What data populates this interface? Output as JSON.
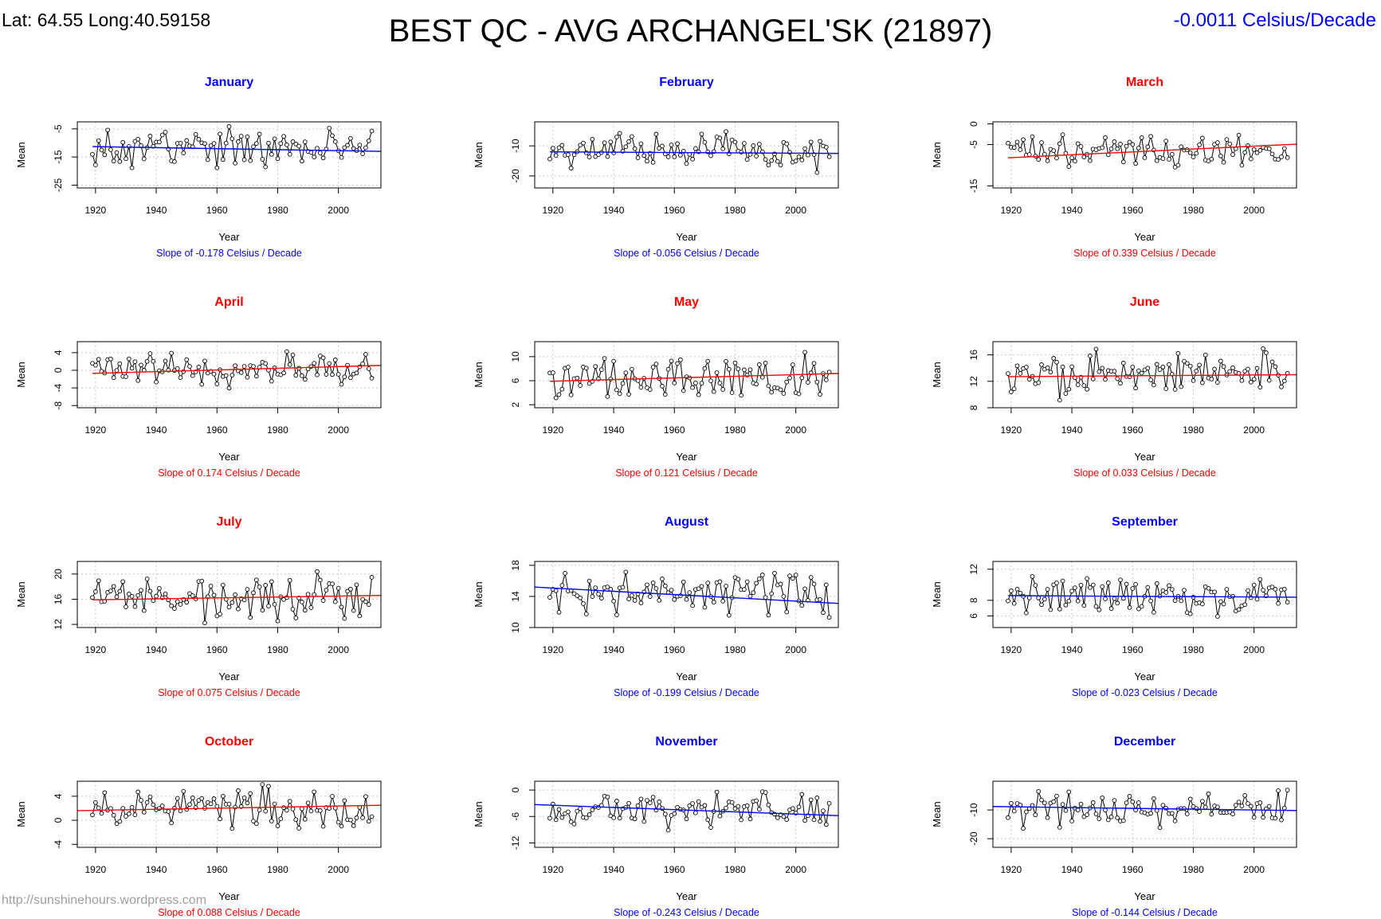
{
  "header": {
    "latlong": "Lat: 64.55   Long:40.59158",
    "title": "BEST QC - AVG ARCHANGEL'SK (21897)",
    "overall_slope": "-0.0011 Celsius/Decade",
    "overall_slope_color": "#0000ff"
  },
  "watermark": "http://sunshinehours.wordpress.com",
  "colors": {
    "warming": "#ff0000",
    "cooling": "#0000ff"
  },
  "chart_data": [
    {
      "type": "line",
      "title": "January",
      "xlabel": "Year",
      "ylabel": "Mean",
      "slope_text": "Slope of -0.178  Celsius / Decade",
      "trend": "cooling",
      "x_ticks": [
        "1920",
        "1940",
        "1960",
        "1980",
        "2000"
      ],
      "xlim": [
        1914,
        2014
      ],
      "y_ticks": [
        "-5",
        "-15",
        "-25"
      ],
      "y_tick_values": [
        -5,
        -15,
        -25
      ],
      "ylim": [
        -26,
        -2.5
      ],
      "trend_line": [
        [
          1919,
          -11.3
        ],
        [
          2014,
          -13.0
        ]
      ],
      "seed": 1,
      "mean": -12,
      "amp": 5.5,
      "lo": -24.5,
      "hi": -3.5
    },
    {
      "type": "line",
      "title": "February",
      "xlabel": "Year",
      "ylabel": "Mean",
      "slope_text": "Slope of -0.056  Celsius / Decade",
      "trend": "cooling",
      "x_ticks": [
        "1920",
        "1940",
        "1960",
        "1980",
        "2000"
      ],
      "xlim": [
        1914,
        2014
      ],
      "y_ticks": [
        "-10",
        "-20"
      ],
      "y_tick_values": [
        -10,
        -20
      ],
      "ylim": [
        -24,
        -2
      ],
      "trend_line": [
        [
          1919,
          -12.0
        ],
        [
          2014,
          -12.5
        ]
      ],
      "seed": 2,
      "mean": -12,
      "amp": 4.5,
      "lo": -23.5,
      "hi": -2.5
    },
    {
      "type": "line",
      "title": "March",
      "xlabel": "Year",
      "ylabel": "Mean",
      "slope_text": "Slope of 0.339  Celsius / Decade",
      "trend": "warming",
      "x_ticks": [
        "1920",
        "1940",
        "1960",
        "1980",
        "2000"
      ],
      "xlim": [
        1914,
        2014
      ],
      "y_ticks": [
        "0",
        "-5",
        "-15"
      ],
      "y_tick_values": [
        0,
        -5,
        -15
      ],
      "ylim": [
        -15.5,
        0.5
      ],
      "trend_line": [
        [
          1919,
          -8.2
        ],
        [
          2014,
          -4.9
        ]
      ],
      "seed": 3,
      "mean": -6.5,
      "amp": 3,
      "lo": -15,
      "hi": 0
    },
    {
      "type": "line",
      "title": "April",
      "xlabel": "Year",
      "ylabel": "Mean",
      "slope_text": "Slope of 0.174  Celsius / Decade",
      "trend": "warming",
      "x_ticks": [
        "1920",
        "1940",
        "1960",
        "1980",
        "2000"
      ],
      "xlim": [
        1914,
        2014
      ],
      "y_ticks": [
        "4",
        "0",
        "-4",
        "-8"
      ],
      "y_tick_values": [
        4,
        0,
        -4,
        -8
      ],
      "ylim": [
        -8.5,
        6.5
      ],
      "trend_line": [
        [
          1919,
          -0.7
        ],
        [
          2014,
          1.1
        ]
      ],
      "seed": 4,
      "mean": 0.3,
      "amp": 2.8,
      "lo": -8,
      "hi": 5.8
    },
    {
      "type": "line",
      "title": "May",
      "xlabel": "Year",
      "ylabel": "Mean",
      "slope_text": "Slope of 0.121  Celsius / Decade",
      "trend": "warming",
      "x_ticks": [
        "1920",
        "1940",
        "1960",
        "1980",
        "2000"
      ],
      "xlim": [
        1914,
        2014
      ],
      "y_ticks": [
        "10",
        "6",
        "2"
      ],
      "y_tick_values": [
        10,
        6,
        2
      ],
      "ylim": [
        1.5,
        12.5
      ],
      "trend_line": [
        [
          1919,
          5.9
        ],
        [
          2014,
          7.2
        ]
      ],
      "seed": 5,
      "mean": 6.5,
      "amp": 2.6,
      "lo": 1.8,
      "hi": 12
    },
    {
      "type": "line",
      "title": "June",
      "xlabel": "Year",
      "ylabel": "Mean",
      "slope_text": "Slope of 0.033  Celsius / Decade",
      "trend": "warming",
      "x_ticks": [
        "1920",
        "1940",
        "1960",
        "1980",
        "2000"
      ],
      "xlim": [
        1914,
        2014
      ],
      "y_ticks": [
        "16",
        "12",
        "8"
      ],
      "y_tick_values": [
        16,
        12,
        8
      ],
      "ylim": [
        8,
        18
      ],
      "trend_line": [
        [
          1919,
          12.7
        ],
        [
          2014,
          13.0
        ]
      ],
      "seed": 6,
      "mean": 12.8,
      "amp": 2.5,
      "lo": 8.3,
      "hi": 17.7
    },
    {
      "type": "line",
      "title": "July",
      "xlabel": "Year",
      "ylabel": "Mean",
      "slope_text": "Slope of 0.075  Celsius / Decade",
      "trend": "warming",
      "x_ticks": [
        "1920",
        "1940",
        "1960",
        "1980",
        "2000"
      ],
      "xlim": [
        1914,
        2014
      ],
      "y_ticks": [
        "20",
        "16",
        "12"
      ],
      "y_tick_values": [
        20,
        16,
        12
      ],
      "ylim": [
        11.5,
        22
      ],
      "trend_line": [
        [
          1919,
          15.9
        ],
        [
          2014,
          16.6
        ]
      ],
      "seed": 7,
      "mean": 16.3,
      "amp": 2.5,
      "lo": 11.8,
      "hi": 21.5
    },
    {
      "type": "line",
      "title": "August",
      "xlabel": "Year",
      "ylabel": "Mean",
      "slope_text": "Slope of -0.199  Celsius / Decade",
      "trend": "cooling",
      "x_ticks": [
        "1920",
        "1940",
        "1960",
        "1980",
        "2000"
      ],
      "xlim": [
        1914,
        2014
      ],
      "y_ticks": [
        "18",
        "14",
        "10"
      ],
      "y_tick_values": [
        18,
        14,
        10
      ],
      "ylim": [
        10,
        18.5
      ],
      "trend_line": [
        [
          1914,
          15.2
        ],
        [
          2014,
          13.1
        ]
      ],
      "seed": 8,
      "mean": 14.2,
      "amp": 1.9,
      "lo": 10.3,
      "hi": 18
    },
    {
      "type": "line",
      "title": "September",
      "xlabel": "Year",
      "ylabel": "Mean",
      "slope_text": "Slope of -0.023  Celsius / Decade",
      "trend": "cooling",
      "x_ticks": [
        "1920",
        "1940",
        "1960",
        "1980",
        "2000"
      ],
      "xlim": [
        1914,
        2014
      ],
      "y_ticks": [
        "12",
        "8",
        "6"
      ],
      "y_tick_values": [
        12,
        8,
        6
      ],
      "ylim": [
        4.5,
        13
      ],
      "trend_line": [
        [
          1919,
          8.6
        ],
        [
          2014,
          8.4
        ]
      ],
      "seed": 9,
      "mean": 8.5,
      "amp": 1.8,
      "lo": 5,
      "hi": 12.3
    },
    {
      "type": "line",
      "title": "October",
      "xlabel": "Year",
      "ylabel": "Mean",
      "slope_text": "Slope of 0.088  Celsius / Decade",
      "trend": "warming",
      "x_ticks": [
        "1920",
        "1940",
        "1960",
        "1980",
        "2000"
      ],
      "xlim": [
        1914,
        2014
      ],
      "y_ticks": [
        "4",
        "0",
        "-4"
      ],
      "y_tick_values": [
        4,
        0,
        -4
      ],
      "ylim": [
        -4.5,
        6.5
      ],
      "trend_line": [
        [
          1914,
          1.6
        ],
        [
          2014,
          2.5
        ]
      ],
      "seed": 10,
      "mean": 2,
      "amp": 2.3,
      "lo": -4,
      "hi": 6.2
    },
    {
      "type": "line",
      "title": "November",
      "xlabel": "Year",
      "ylabel": "Mean",
      "slope_text": "Slope of -0.243  Celsius / Decade",
      "trend": "cooling",
      "x_ticks": [
        "1920",
        "1940",
        "1960",
        "1980",
        "2000"
      ],
      "xlim": [
        1914,
        2014
      ],
      "y_ticks": [
        "0",
        "-6",
        "-12"
      ],
      "y_tick_values": [
        0,
        -6,
        -12
      ],
      "ylim": [
        -13,
        2
      ],
      "trend_line": [
        [
          1914,
          -3.3
        ],
        [
          2014,
          -5.8
        ]
      ],
      "seed": 11,
      "mean": -4.5,
      "amp": 3,
      "lo": -12.5,
      "hi": 1.8
    },
    {
      "type": "line",
      "title": "December",
      "xlabel": "Year",
      "ylabel": "Mean",
      "slope_text": "Slope of -0.144  Celsius / Decade",
      "trend": "cooling",
      "x_ticks": [
        "1920",
        "1940",
        "1960",
        "1980",
        "2000"
      ],
      "xlim": [
        1914,
        2014
      ],
      "y_ticks": [
        "-10",
        "-20"
      ],
      "y_tick_values": [
        -10,
        -20
      ],
      "ylim": [
        -23,
        0
      ],
      "trend_line": [
        [
          1914,
          -8.8
        ],
        [
          2014,
          -10.2
        ]
      ],
      "seed": 12,
      "mean": -9.5,
      "amp": 4,
      "lo": -22,
      "hi": -1
    }
  ]
}
